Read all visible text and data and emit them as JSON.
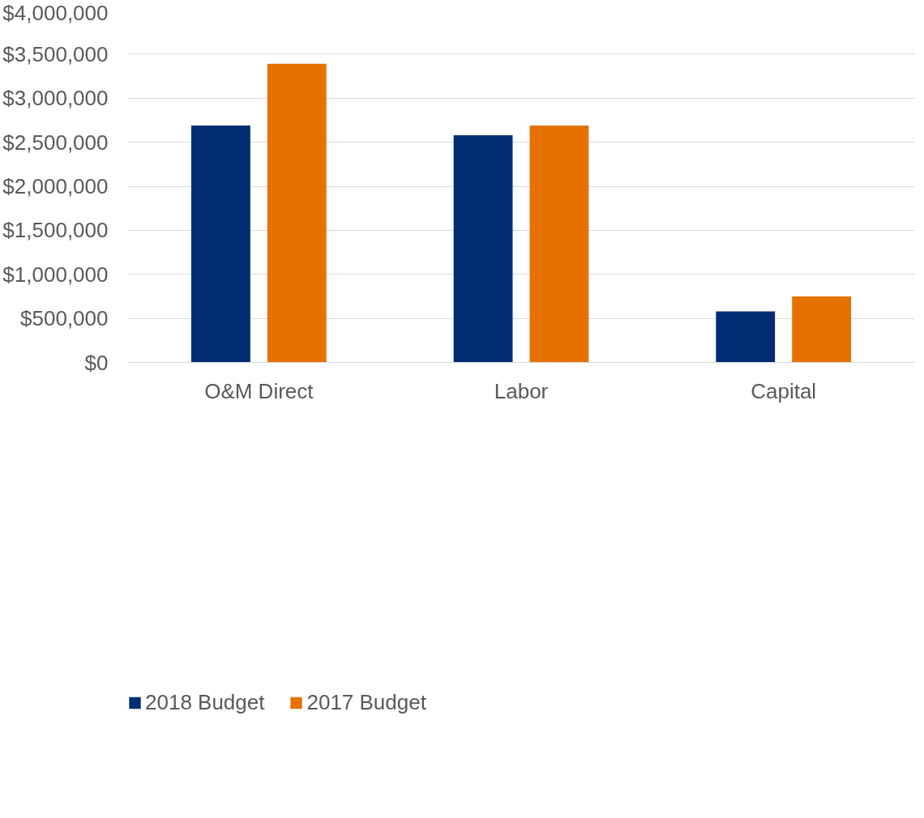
{
  "chart_data": {
    "type": "bar",
    "categories": [
      "O&M Direct",
      "Labor",
      "Capital"
    ],
    "series": [
      {
        "name": "2018 Budget",
        "color": "#002d72",
        "values": [
          2690000,
          2580000,
          580000
        ]
      },
      {
        "name": "2017 Budget",
        "color": "#e57200",
        "values": [
          3390000,
          2690000,
          750000
        ]
      }
    ],
    "ylim": [
      0,
      4000000
    ],
    "yticks": [
      {
        "value": 0,
        "label": "$0"
      },
      {
        "value": 500000,
        "label": "$500,000"
      },
      {
        "value": 1000000,
        "label": "$1,000,000"
      },
      {
        "value": 1500000,
        "label": "$1,500,000"
      },
      {
        "value": 2000000,
        "label": "$2,000,000"
      },
      {
        "value": 2500000,
        "label": "$2,500,000"
      },
      {
        "value": 3000000,
        "label": "$3,000,000"
      },
      {
        "value": 3500000,
        "label": "$3,500,000"
      },
      {
        "value": 4000000,
        "label": "$4,000,000"
      }
    ],
    "grid": "y",
    "legend": "bottom"
  }
}
